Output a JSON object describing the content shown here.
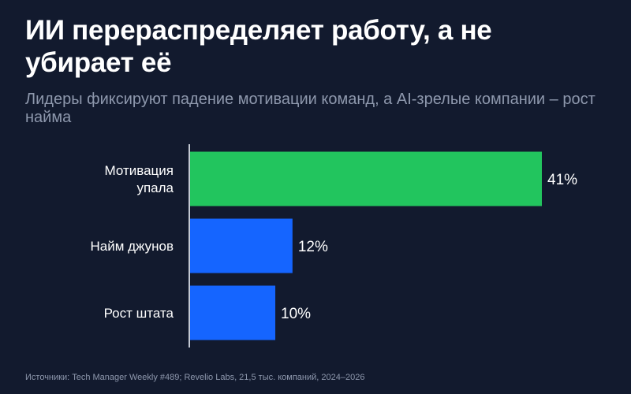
{
  "header": {
    "title": "ИИ перераспределяет работу, а не убирает её",
    "subtitle": "Лидеры фиксируют падение мотивации команд, а AI-зрелые компании – рост найма"
  },
  "colors": {
    "background": "#121a2e",
    "highlight": "#22c55e",
    "bar": "#1565ff",
    "axis": "#c3c8d2",
    "text": "#ffffff",
    "muted": "#8e98ad"
  },
  "chart_data": {
    "type": "bar",
    "orientation": "horizontal",
    "categories": [
      "Мотивация упала",
      "Найм джунов",
      "Рост штата"
    ],
    "category_lines": [
      [
        "Мотивация",
        "упала"
      ],
      [
        "Найм джунов"
      ],
      [
        "Рост штата"
      ]
    ],
    "values": [
      41,
      12,
      10
    ],
    "value_labels": [
      "41%",
      "12%",
      "10%"
    ],
    "highlight_index": 0,
    "xlim": [
      0,
      41
    ],
    "grid": false,
    "title": "",
    "xlabel": "",
    "ylabel": ""
  },
  "footer": {
    "source": "Источники: Tech Manager Weekly #489; Revelio Labs, 21,5 тыс. компаний, 2024–2026"
  }
}
